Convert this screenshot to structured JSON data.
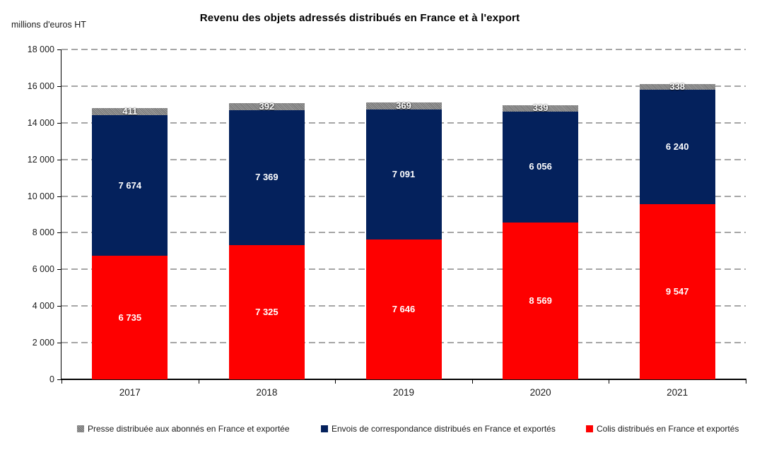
{
  "chart": {
    "title": "Revenu des objets adressés distribués en France et à l'export",
    "unit_label": "millions d'euros HT"
  },
  "chart_data": {
    "type": "bar",
    "stacked": true,
    "title": "Revenu des objets adressés distribués en France et à l'export",
    "ylabel": "millions d'euros HT",
    "categories": [
      "2017",
      "2018",
      "2019",
      "2020",
      "2021"
    ],
    "series": [
      {
        "name": "Colis distribués en France et exportés",
        "color": "#fe0000",
        "values": [
          6735,
          7325,
          7646,
          8569,
          9547
        ]
      },
      {
        "name": "Envois de correspondance distribués en France et exportés",
        "color": "#04215c",
        "values": [
          7674,
          7369,
          7091,
          6056,
          6240
        ]
      },
      {
        "name": "Presse distribuée aux abonnés en France et exportée",
        "color": "#919191",
        "pattern": "diagonal-hatch",
        "values": [
          411,
          392,
          369,
          339,
          338
        ]
      }
    ],
    "totals": [
      14820,
      15086,
      15106,
      14964,
      16125
    ],
    "ylim": [
      0,
      18000
    ],
    "ytick_step": 2000,
    "ytick_labels": [
      "0",
      "2 000",
      "4 000",
      "6 000",
      "8 000",
      "10 000",
      "12 000",
      "14 000",
      "16 000",
      "18 000"
    ],
    "grid": "horizontal dashed gray",
    "value_labels": "white bold, thousands separated by space",
    "legend_position": "bottom"
  },
  "legend": {
    "items": [
      {
        "label": "Presse distribuée aux abonnés en France et exportée",
        "color": "#919191",
        "series": "presse"
      },
      {
        "label": "Envois de correspondance distribués en France et exportés",
        "color": "#04215c",
        "series": "envois"
      },
      {
        "label": "Colis distribués en France et exportés",
        "color": "#fe0000",
        "series": "colis"
      }
    ]
  },
  "colors": {
    "colis_red": "#fe0000",
    "envois_navy": "#04215c",
    "presse_gray": "#919191",
    "gridline": "#a6a6a6",
    "axis": "#000000"
  }
}
